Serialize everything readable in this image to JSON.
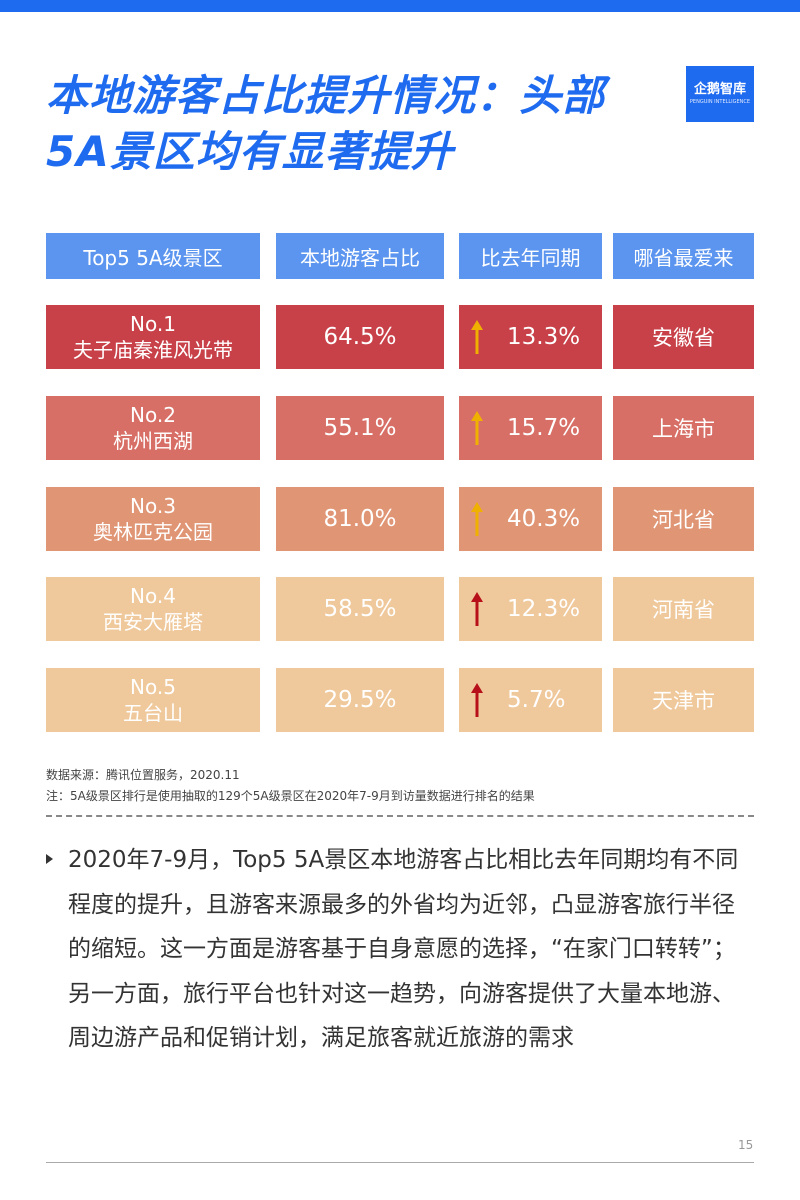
{
  "page": {
    "title_line1": "本地游客占比提升情况：头部",
    "title_line2": "5A景区均有显著提升",
    "logo_text": "企鹅智库",
    "logo_sub": "PENGUIN INTELLIGENCE",
    "page_number": "15"
  },
  "table": {
    "headers": [
      "Top5 5A级景区",
      "本地游客占比",
      "比去年同期",
      "哪省最爱来"
    ],
    "header_color": "#5b95ef",
    "rows": [
      {
        "rank": "No.1",
        "name": "夫子庙秦淮风光带",
        "share": "64.5%",
        "change": "13.3%",
        "province": "安徽省",
        "color": "#c84149",
        "arrow_color": "#f0b000"
      },
      {
        "rank": "No.2",
        "name": "杭州西湖",
        "share": "55.1%",
        "change": "15.7%",
        "province": "上海市",
        "color": "#d76f66",
        "arrow_color": "#f0b000"
      },
      {
        "rank": "No.3",
        "name": "奥林匹克公园",
        "share": "81.0%",
        "change": "40.3%",
        "province": "河北省",
        "color": "#e09575",
        "arrow_color": "#f0b000"
      },
      {
        "rank": "No.4",
        "name": "西安大雁塔",
        "share": "58.5%",
        "change": "12.3%",
        "province": "河南省",
        "color": "#efc89b",
        "arrow_color": "#b8101a"
      },
      {
        "rank": "No.5",
        "name": "五台山",
        "share": "29.5%",
        "change": "5.7%",
        "province": "天津市",
        "color": "#efc89b",
        "arrow_color": "#b8101a"
      }
    ]
  },
  "source": {
    "line1": "数据来源：腾讯位置服务，2020.11",
    "line2": "注：5A级景区排行是使用抽取的129个5A级景区在2020年7-9月到访量数据进行排名的结果"
  },
  "body": {
    "paragraph": "2020年7-9月，Top5 5A景区本地游客占比相比去年同期均有不同程度的提升，且游客来源最多的外省均为近邻，凸显游客旅行半径的缩短。这一方面是游客基于自身意愿的选择，“在家门口转转”；另一方面，旅行平台也针对这一趋势，向游客提供了大量本地游、周边游产品和促销计划，满足旅客就近旅游的需求"
  },
  "colors": {
    "accent": "#1f6bf0"
  }
}
